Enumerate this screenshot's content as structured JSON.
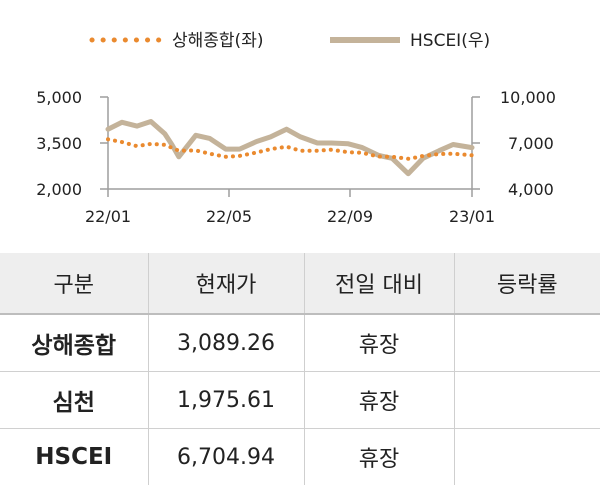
{
  "chart_data": {
    "type": "line",
    "legend": [
      {
        "name": "상해종합(좌)",
        "color": "#ea8a2f",
        "style": "dotted"
      },
      {
        "name": "HSCEI(우)",
        "color": "#c4b39a",
        "style": "solid"
      }
    ],
    "legend_placement": "top-center",
    "x_ticks": [
      "22/01",
      "22/05",
      "22/09",
      "23/01"
    ],
    "y_left": {
      "ticks": [
        "5,000",
        "3,500",
        "2,000"
      ],
      "range": [
        2000,
        5000
      ]
    },
    "y_right": {
      "ticks": [
        "10,000",
        "7,000",
        "4,000"
      ],
      "range": [
        4000,
        10000
      ]
    },
    "grid": false,
    "series": [
      {
        "name": "상해종합(좌)",
        "axis": "left",
        "x": [
          "2022-01-03",
          "2022-01-17",
          "2022-02-01",
          "2022-02-15",
          "2022-03-01",
          "2022-03-15",
          "2022-04-01",
          "2022-04-15",
          "2022-05-01",
          "2022-05-15",
          "2022-06-01",
          "2022-06-15",
          "2022-07-01",
          "2022-07-15",
          "2022-08-01",
          "2022-08-15",
          "2022-09-01",
          "2022-09-15",
          "2022-10-01",
          "2022-10-15",
          "2022-11-01",
          "2022-11-15",
          "2022-12-01",
          "2022-12-15",
          "2023-01-03"
        ],
        "values": [
          3620,
          3530,
          3400,
          3470,
          3440,
          3250,
          3260,
          3150,
          3050,
          3080,
          3190,
          3300,
          3380,
          3250,
          3250,
          3280,
          3200,
          3180,
          3060,
          3050,
          2980,
          3080,
          3140,
          3150,
          3100
        ]
      },
      {
        "name": "HSCEI(우)",
        "axis": "right",
        "x": [
          "2022-01-03",
          "2022-01-17",
          "2022-02-01",
          "2022-02-15",
          "2022-03-01",
          "2022-03-08",
          "2022-03-15",
          "2022-04-01",
          "2022-04-15",
          "2022-05-01",
          "2022-05-15",
          "2022-06-01",
          "2022-06-15",
          "2022-07-01",
          "2022-07-15",
          "2022-08-01",
          "2022-08-15",
          "2022-09-01",
          "2022-09-15",
          "2022-10-01",
          "2022-10-15",
          "2022-10-31",
          "2022-11-15",
          "2022-12-01",
          "2022-12-15",
          "2023-01-03"
        ],
        "values": [
          7900,
          8350,
          8100,
          8400,
          7600,
          6900,
          6100,
          7500,
          7300,
          6600,
          6600,
          7100,
          7400,
          7900,
          7400,
          7000,
          7000,
          6950,
          6700,
          6200,
          6000,
          5000,
          6000,
          6500,
          6900,
          6700
        ]
      }
    ]
  },
  "table": {
    "headers": [
      "구분",
      "현재가",
      "전일 대비",
      "등락률"
    ],
    "rows": [
      {
        "name": "상해종합",
        "price": "3,089.26",
        "change": "휴장",
        "rate": ""
      },
      {
        "name": "심천",
        "price": "1,975.61",
        "change": "휴장",
        "rate": ""
      },
      {
        "name": "HSCEI",
        "price": "6,704.94",
        "change": "휴장",
        "rate": ""
      }
    ]
  }
}
